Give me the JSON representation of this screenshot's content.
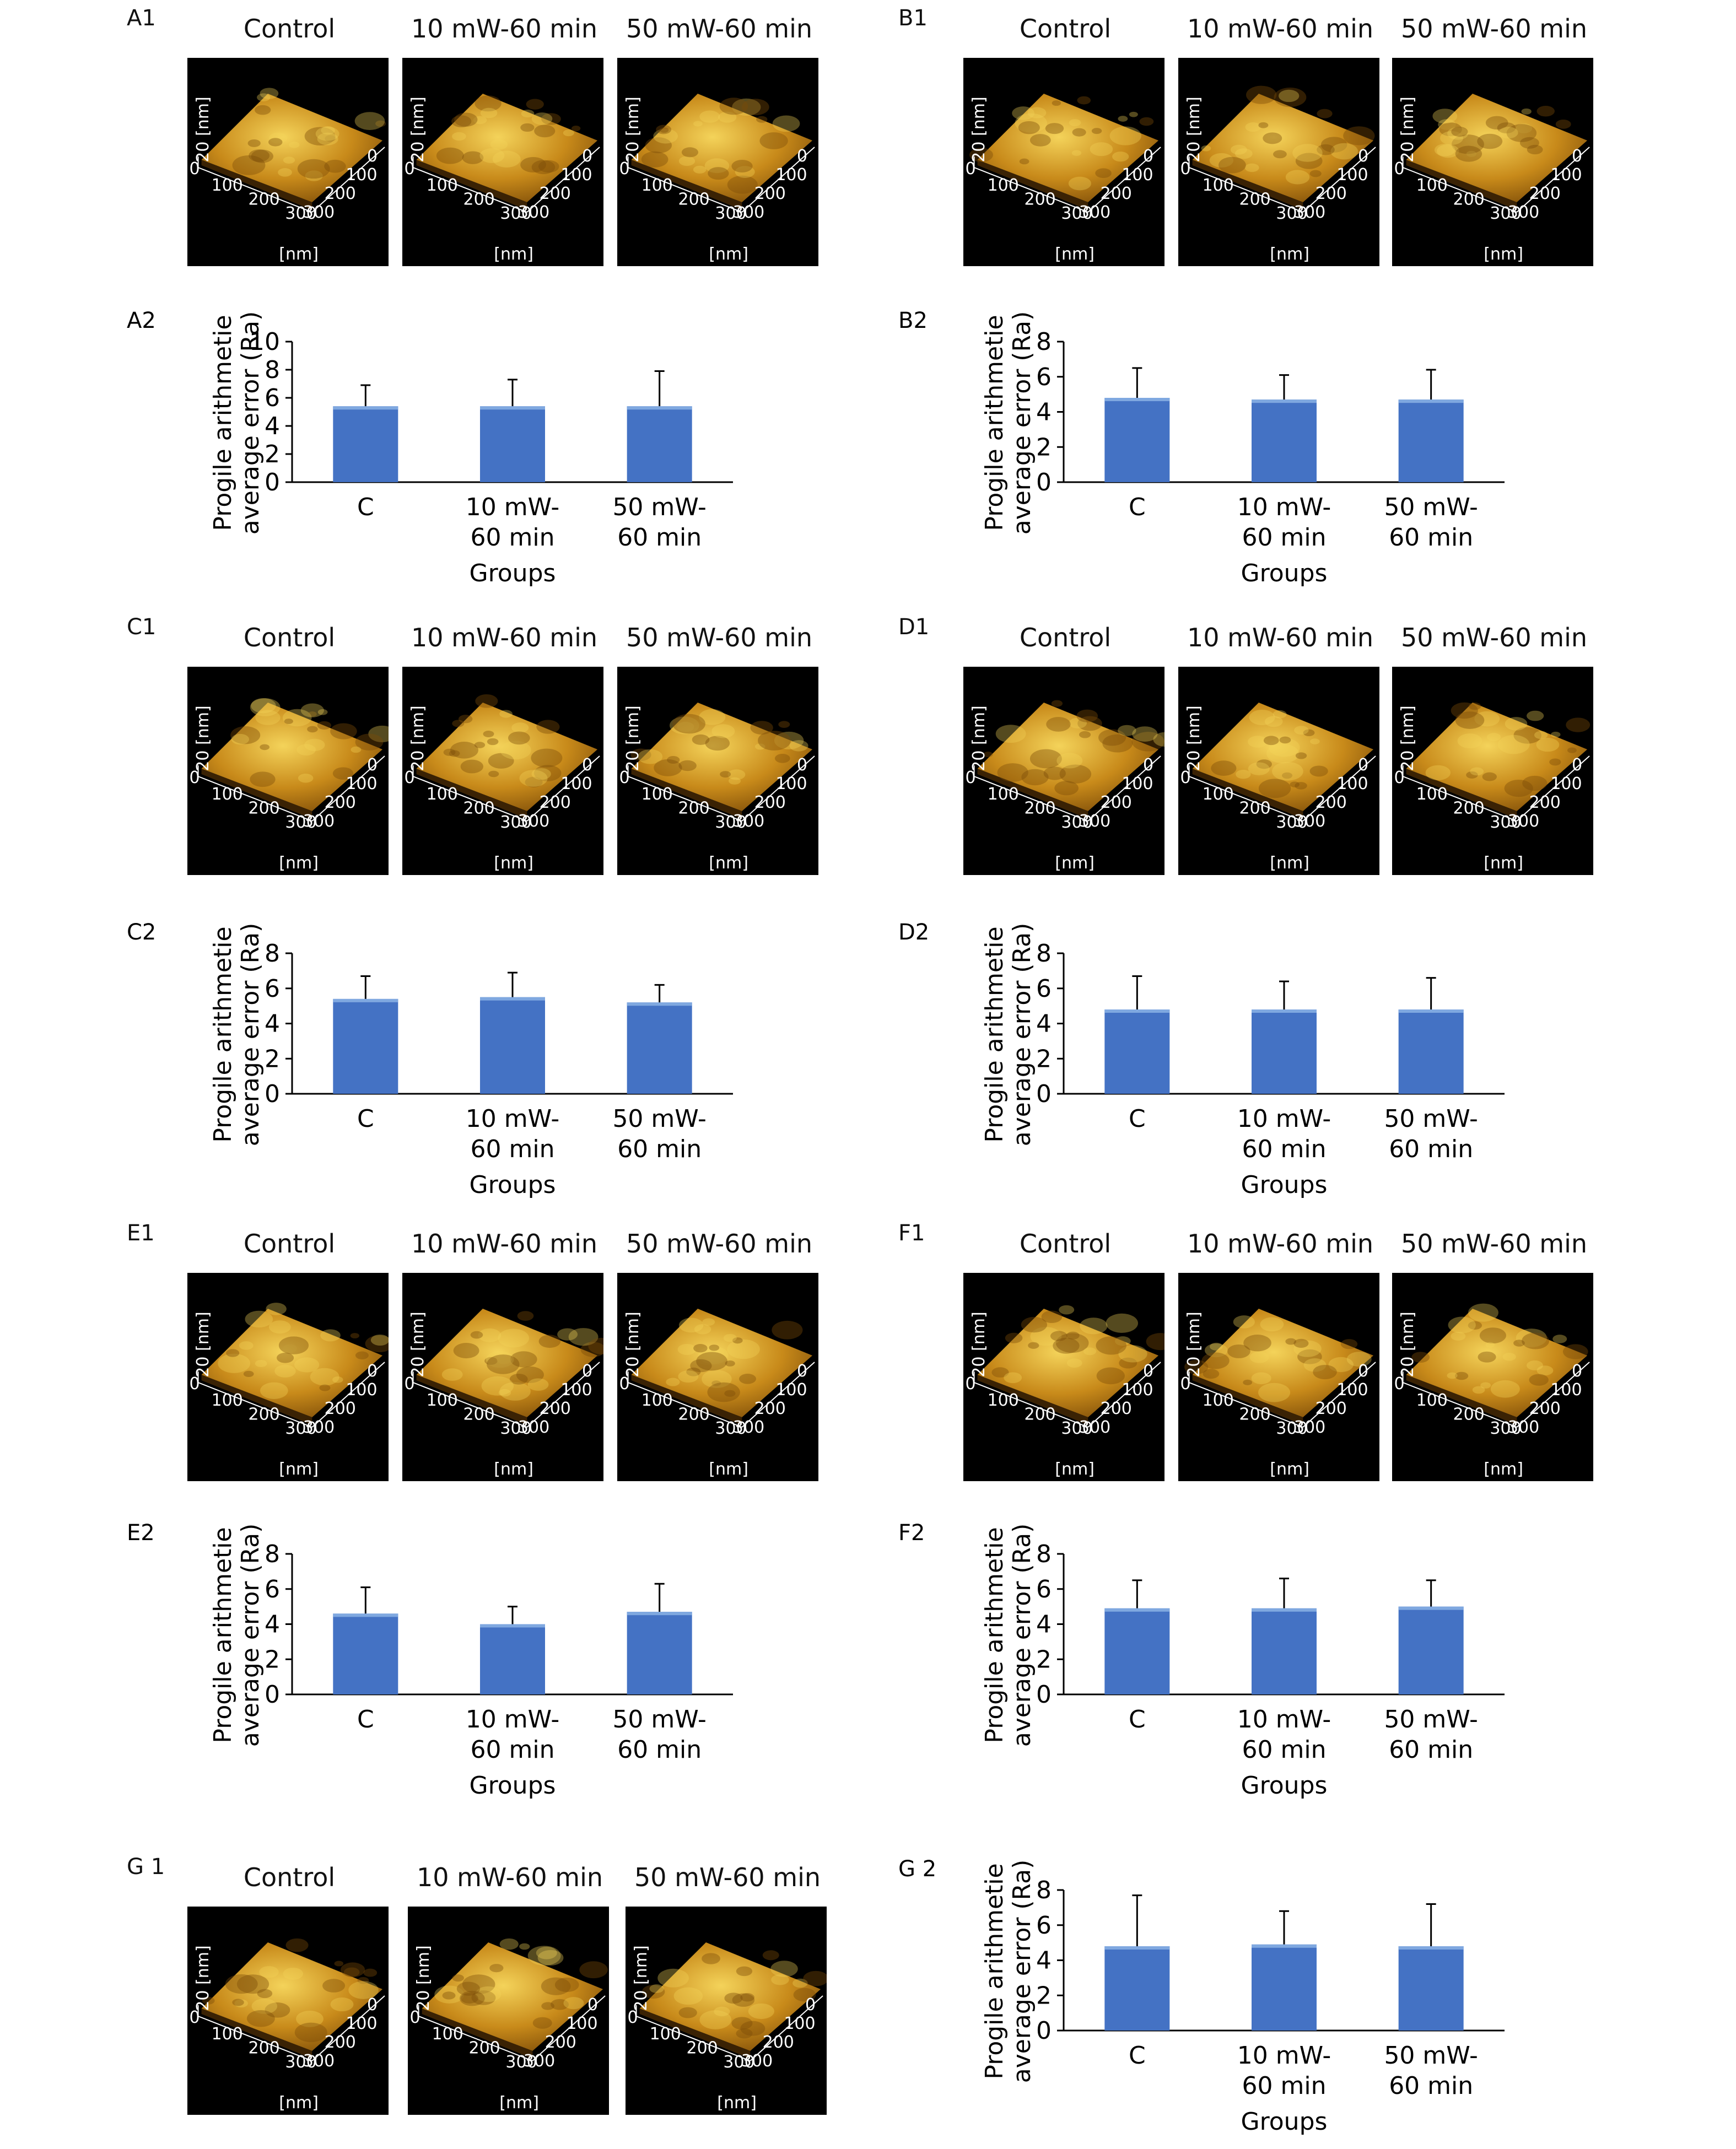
{
  "afm": {
    "row_titles": [
      "Control",
      "10 mW-60 min",
      "50 mW-60 min"
    ],
    "axis": {
      "z_label": "20 [nm]",
      "z_zero": "0",
      "x_ticks": [
        "100",
        "200",
        "300"
      ],
      "y_ticks": [
        "0",
        "100",
        "200",
        "300"
      ],
      "unit": "[nm]"
    }
  },
  "panels": [
    {
      "id": "A",
      "label1": "A1",
      "label2": "A2"
    },
    {
      "id": "B",
      "label1": "B1",
      "label2": "B2"
    },
    {
      "id": "C",
      "label1": "C1",
      "label2": "C2"
    },
    {
      "id": "D",
      "label1": "D1",
      "label2": "D2"
    },
    {
      "id": "E",
      "label1": "E1",
      "label2": "E2"
    },
    {
      "id": "F",
      "label1": "F1",
      "label2": "F2"
    },
    {
      "id": "G",
      "label1": "G 1",
      "label2": "G 2"
    }
  ],
  "colors": {
    "bar_fill": "#4472c4",
    "bar_top": "#7fa8e0",
    "afm_background": "#000000",
    "afm_surface_dark": "#7a4a08",
    "afm_surface_mid": "#c88a1a",
    "afm_surface_light": "#f4d35a",
    "axis": "#000000"
  },
  "chart_data": [
    {
      "type": "bar",
      "panel": "A2",
      "ylabel": [
        "Progile arithmetie",
        "average error (Ra)"
      ],
      "xlabel": "Groups",
      "categories": [
        [
          "C"
        ],
        [
          "10 mW-",
          "60 min"
        ],
        [
          "50 mW-",
          "60 min"
        ]
      ],
      "values": [
        5.4,
        5.4,
        5.4
      ],
      "errors": [
        1.5,
        1.9,
        2.5
      ],
      "ylim": [
        0,
        10
      ],
      "yticks": [
        0,
        2,
        4,
        6,
        8,
        10
      ]
    },
    {
      "type": "bar",
      "panel": "B2",
      "ylabel": [
        "Progile arithmetie",
        "average error (Ra)"
      ],
      "xlabel": "Groups",
      "categories": [
        [
          "C"
        ],
        [
          "10 mW-",
          "60 min"
        ],
        [
          "50 mW-",
          "60 min"
        ]
      ],
      "values": [
        4.8,
        4.7,
        4.7
      ],
      "errors": [
        1.7,
        1.4,
        1.7
      ],
      "ylim": [
        0,
        8
      ],
      "yticks": [
        0,
        2,
        4,
        6,
        8
      ]
    },
    {
      "type": "bar",
      "panel": "C2",
      "ylabel": [
        "Progile arithmetie",
        "average error (Ra)"
      ],
      "xlabel": "Groups",
      "categories": [
        [
          "C"
        ],
        [
          "10 mW-",
          "60 min"
        ],
        [
          "50 mW-",
          "60 min"
        ]
      ],
      "values": [
        5.4,
        5.5,
        5.2
      ],
      "errors": [
        1.3,
        1.4,
        1.0
      ],
      "ylim": [
        0,
        8
      ],
      "yticks": [
        0,
        2,
        4,
        6,
        8
      ]
    },
    {
      "type": "bar",
      "panel": "D2",
      "ylabel": [
        "Progile arithmetie",
        "average error (Ra)"
      ],
      "xlabel": "Groups",
      "categories": [
        [
          "C"
        ],
        [
          "10 mW-",
          "60 min"
        ],
        [
          "50 mW-",
          "60 min"
        ]
      ],
      "values": [
        4.8,
        4.8,
        4.8
      ],
      "errors": [
        1.9,
        1.6,
        1.8
      ],
      "ylim": [
        0,
        8
      ],
      "yticks": [
        0,
        2,
        4,
        6,
        8
      ]
    },
    {
      "type": "bar",
      "panel": "E2",
      "ylabel": [
        "Progile arithmetie",
        "average error (Ra)"
      ],
      "xlabel": "Groups",
      "categories": [
        [
          "C"
        ],
        [
          "10 mW-",
          "60 min"
        ],
        [
          "50 mW-",
          "60 min"
        ]
      ],
      "values": [
        4.6,
        4.0,
        4.7
      ],
      "errors": [
        1.5,
        1.0,
        1.6
      ],
      "ylim": [
        0,
        8
      ],
      "yticks": [
        0,
        2,
        4,
        6,
        8
      ]
    },
    {
      "type": "bar",
      "panel": "F2",
      "ylabel": [
        "Progile arithmetie",
        "average error (Ra)"
      ],
      "xlabel": "Groups",
      "categories": [
        [
          "C"
        ],
        [
          "10 mW-",
          "60 min"
        ],
        [
          "50 mW-",
          "60 min"
        ]
      ],
      "values": [
        4.9,
        4.9,
        5.0
      ],
      "errors": [
        1.6,
        1.7,
        1.5
      ],
      "ylim": [
        0,
        8
      ],
      "yticks": [
        0,
        2,
        4,
        6,
        8
      ]
    },
    {
      "type": "bar",
      "panel": "G2",
      "ylabel": [
        "Progile arithmetie",
        "average error (Ra)"
      ],
      "xlabel": "Groups",
      "categories": [
        [
          "C"
        ],
        [
          "10 mW-",
          "60 min"
        ],
        [
          "50 mW-",
          "60 min"
        ]
      ],
      "values": [
        4.8,
        4.9,
        4.8
      ],
      "errors": [
        2.9,
        1.9,
        2.4
      ],
      "ylim": [
        0,
        8
      ],
      "yticks": [
        0,
        2,
        4,
        6,
        8
      ]
    }
  ]
}
